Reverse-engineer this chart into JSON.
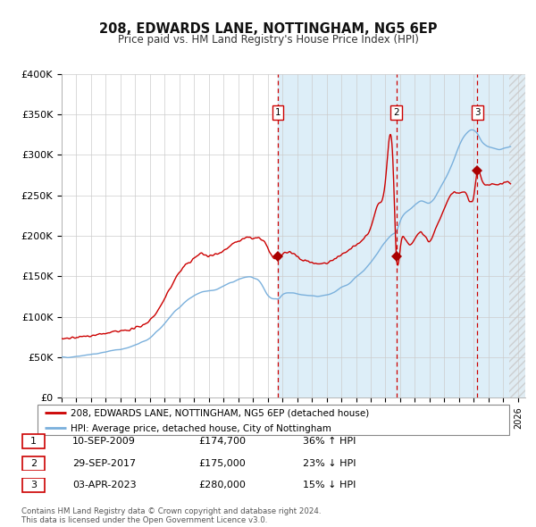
{
  "title": "208, EDWARDS LANE, NOTTINGHAM, NG5 6EP",
  "subtitle": "Price paid vs. HM Land Registry's House Price Index (HPI)",
  "ylim": [
    0,
    400000
  ],
  "yticks": [
    0,
    50000,
    100000,
    150000,
    200000,
    250000,
    300000,
    350000,
    400000
  ],
  "ytick_labels": [
    "£0",
    "£50K",
    "£100K",
    "£150K",
    "£200K",
    "£250K",
    "£300K",
    "£350K",
    "£400K"
  ],
  "xlim_start": 1995.0,
  "xlim_end": 2026.5,
  "sale_dates": [
    2009.69,
    2017.74,
    2023.25
  ],
  "sale_prices": [
    174700,
    175000,
    280000
  ],
  "sale_labels": [
    "1",
    "2",
    "3"
  ],
  "hpi_color": "#7ab0dc",
  "price_color": "#cc0000",
  "marker_color": "#aa0000",
  "dashed_color": "#cc0000",
  "shade_color": "#ddeef8",
  "hatch_color": "#bbbbbb",
  "grid_color": "#cccccc",
  "bg_color": "#ffffff",
  "legend_line1": "208, EDWARDS LANE, NOTTINGHAM, NG5 6EP (detached house)",
  "legend_line2": "HPI: Average price, detached house, City of Nottingham",
  "table_rows": [
    {
      "num": "1",
      "date": "10-SEP-2009",
      "price": "£174,700",
      "hpi": "36% ↑ HPI"
    },
    {
      "num": "2",
      "date": "29-SEP-2017",
      "price": "£175,000",
      "hpi": "23% ↓ HPI"
    },
    {
      "num": "3",
      "date": "03-APR-2023",
      "price": "£280,000",
      "hpi": "15% ↓ HPI"
    }
  ],
  "footer": "Contains HM Land Registry data © Crown copyright and database right 2024.\nThis data is licensed under the Open Government Licence v3.0.",
  "hpi_anchors": [
    [
      1995.0,
      50000
    ],
    [
      1995.5,
      50500
    ],
    [
      1996.0,
      51500
    ],
    [
      1996.5,
      52500
    ],
    [
      1997.0,
      53500
    ],
    [
      1997.5,
      55000
    ],
    [
      1998.0,
      57000
    ],
    [
      1998.5,
      58500
    ],
    [
      1999.0,
      60000
    ],
    [
      1999.5,
      62000
    ],
    [
      2000.0,
      65000
    ],
    [
      2000.5,
      69000
    ],
    [
      2001.0,
      74000
    ],
    [
      2001.5,
      82000
    ],
    [
      2002.0,
      92000
    ],
    [
      2002.5,
      103000
    ],
    [
      2003.0,
      112000
    ],
    [
      2003.5,
      120000
    ],
    [
      2004.0,
      126000
    ],
    [
      2004.5,
      130000
    ],
    [
      2005.0,
      132000
    ],
    [
      2005.5,
      134000
    ],
    [
      2006.0,
      138000
    ],
    [
      2006.5,
      142000
    ],
    [
      2007.0,
      146000
    ],
    [
      2007.5,
      149000
    ],
    [
      2008.0,
      148000
    ],
    [
      2008.5,
      143000
    ],
    [
      2009.0,
      127000
    ],
    [
      2009.5,
      122000
    ],
    [
      2009.69,
      122000
    ],
    [
      2010.0,
      127000
    ],
    [
      2010.5,
      130000
    ],
    [
      2011.0,
      129000
    ],
    [
      2011.5,
      127000
    ],
    [
      2012.0,
      126000
    ],
    [
      2012.5,
      125500
    ],
    [
      2013.0,
      127000
    ],
    [
      2013.5,
      130000
    ],
    [
      2014.0,
      136000
    ],
    [
      2014.5,
      141000
    ],
    [
      2015.0,
      149000
    ],
    [
      2015.5,
      157000
    ],
    [
      2016.0,
      167000
    ],
    [
      2016.5,
      180000
    ],
    [
      2017.0,
      193000
    ],
    [
      2017.5,
      202000
    ],
    [
      2017.74,
      206000
    ],
    [
      2018.0,
      218000
    ],
    [
      2018.5,
      230000
    ],
    [
      2019.0,
      238000
    ],
    [
      2019.5,
      243000
    ],
    [
      2020.0,
      240000
    ],
    [
      2020.5,
      252000
    ],
    [
      2021.0,
      268000
    ],
    [
      2021.5,
      287000
    ],
    [
      2022.0,
      310000
    ],
    [
      2022.5,
      326000
    ],
    [
      2023.0,
      330000
    ],
    [
      2023.25,
      326000
    ],
    [
      2023.5,
      318000
    ],
    [
      2024.0,
      310000
    ],
    [
      2024.5,
      307000
    ],
    [
      2025.0,
      308000
    ],
    [
      2025.5,
      310000
    ]
  ],
  "price_anchors": [
    [
      1995.0,
      72000
    ],
    [
      1995.5,
      73000
    ],
    [
      1996.0,
      74500
    ],
    [
      1996.5,
      75500
    ],
    [
      1997.0,
      77000
    ],
    [
      1997.5,
      78000
    ],
    [
      1998.0,
      79500
    ],
    [
      1998.5,
      81000
    ],
    [
      1999.0,
      82000
    ],
    [
      1999.5,
      84000
    ],
    [
      2000.0,
      86000
    ],
    [
      2000.5,
      90000
    ],
    [
      2001.0,
      96000
    ],
    [
      2001.5,
      107000
    ],
    [
      2002.0,
      122000
    ],
    [
      2002.5,
      140000
    ],
    [
      2003.0,
      155000
    ],
    [
      2003.5,
      165000
    ],
    [
      2004.0,
      172000
    ],
    [
      2004.5,
      178000
    ],
    [
      2005.0,
      175000
    ],
    [
      2005.5,
      178000
    ],
    [
      2006.0,
      182000
    ],
    [
      2006.5,
      188000
    ],
    [
      2007.0,
      193000
    ],
    [
      2007.5,
      197000
    ],
    [
      2008.0,
      197000
    ],
    [
      2008.5,
      196000
    ],
    [
      2009.0,
      185000
    ],
    [
      2009.5,
      172000
    ],
    [
      2009.69,
      174700
    ],
    [
      2010.0,
      176000
    ],
    [
      2010.5,
      180000
    ],
    [
      2011.0,
      174000
    ],
    [
      2011.5,
      170000
    ],
    [
      2012.0,
      167000
    ],
    [
      2012.5,
      166000
    ],
    [
      2013.0,
      167000
    ],
    [
      2013.5,
      171000
    ],
    [
      2014.0,
      176000
    ],
    [
      2014.5,
      182000
    ],
    [
      2015.0,
      188000
    ],
    [
      2015.5,
      196000
    ],
    [
      2016.0,
      210000
    ],
    [
      2016.5,
      238000
    ],
    [
      2017.0,
      268000
    ],
    [
      2017.5,
      295000
    ],
    [
      2017.74,
      175000
    ],
    [
      2018.0,
      184000
    ],
    [
      2018.5,
      191000
    ],
    [
      2019.0,
      197000
    ],
    [
      2019.5,
      204000
    ],
    [
      2020.0,
      194000
    ],
    [
      2020.5,
      213000
    ],
    [
      2021.0,
      233000
    ],
    [
      2021.5,
      252000
    ],
    [
      2022.0,
      253000
    ],
    [
      2022.5,
      251000
    ],
    [
      2023.0,
      250000
    ],
    [
      2023.25,
      280000
    ],
    [
      2023.5,
      271000
    ],
    [
      2024.0,
      263000
    ],
    [
      2024.5,
      263000
    ],
    [
      2025.0,
      265000
    ],
    [
      2025.5,
      265000
    ]
  ]
}
